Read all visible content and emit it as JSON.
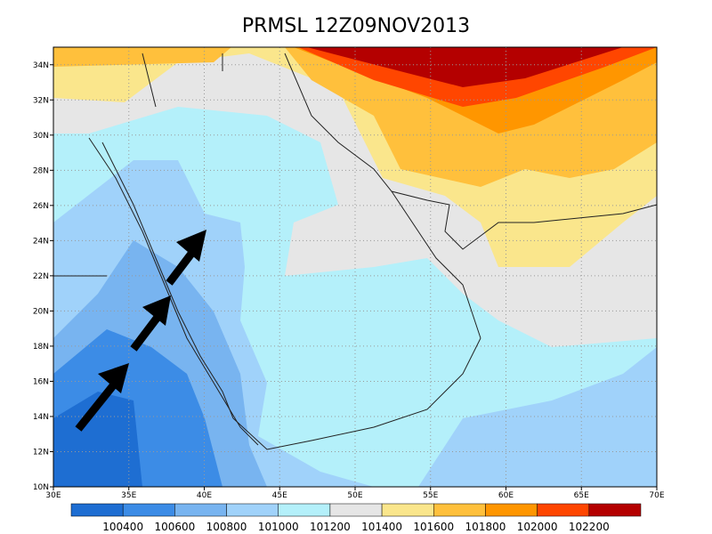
{
  "map": {
    "title": "PRMSL 12Z09NOV2013",
    "xlim": [
      30,
      70
    ],
    "ylim": [
      10,
      35
    ],
    "xticks": [
      {
        "value": 30,
        "label": "30E"
      },
      {
        "value": 35,
        "label": "35E"
      },
      {
        "value": 40,
        "label": "40E"
      },
      {
        "value": 45,
        "label": "45E"
      },
      {
        "value": 50,
        "label": "50E"
      },
      {
        "value": 55,
        "label": "55E"
      },
      {
        "value": 60,
        "label": "60E"
      },
      {
        "value": 65,
        "label": "65E"
      },
      {
        "value": 70,
        "label": "70E"
      }
    ],
    "yticks": [
      {
        "value": 10,
        "label": "10N"
      },
      {
        "value": 12,
        "label": "12N"
      },
      {
        "value": 14,
        "label": "14N"
      },
      {
        "value": 16,
        "label": "16N"
      },
      {
        "value": 18,
        "label": "18N"
      },
      {
        "value": 20,
        "label": "20N"
      },
      {
        "value": 22,
        "label": "22N"
      },
      {
        "value": 24,
        "label": "24N"
      },
      {
        "value": 26,
        "label": "26N"
      },
      {
        "value": 28,
        "label": "28N"
      },
      {
        "value": 30,
        "label": "30N"
      },
      {
        "value": 32,
        "label": "32N"
      },
      {
        "value": 34,
        "label": "34N"
      }
    ],
    "grid": true,
    "colorbar": {
      "levels": [
        100400,
        100600,
        100800,
        101000,
        101200,
        101400,
        101600,
        101800,
        102000,
        102200
      ],
      "colors": [
        "#1e6ed2",
        "#3c8ce6",
        "#78b4f0",
        "#a0d2fa",
        "#b4f0fa",
        "#e6e6e6",
        "#fae68c",
        "#ffc03c",
        "#ff9600",
        "#ff4600",
        "#b40000"
      ]
    }
  }
}
